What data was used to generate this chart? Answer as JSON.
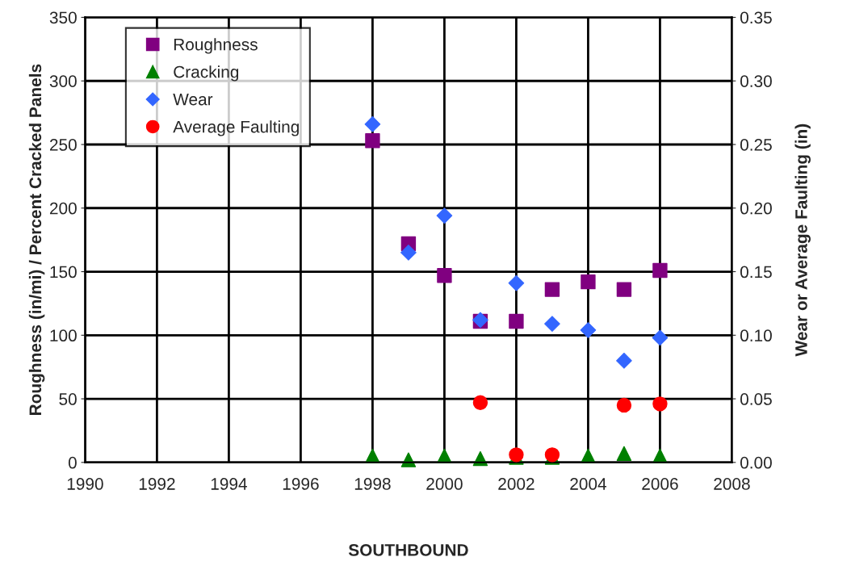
{
  "chart_data": {
    "type": "scatter",
    "xlabel": "SOUTHBOUND",
    "ylabel": "Roughness (in/mi) / Percent Cracked Panels",
    "y2label": "Wear or Average Faulting (in)",
    "x": [
      1998,
      1999,
      2000,
      2001,
      2002,
      2003,
      2004,
      2005,
      2006
    ],
    "series": [
      {
        "name": "Roughness",
        "color": "#800080",
        "marker": "square",
        "values": [
          253,
          172,
          147,
          111,
          111,
          136,
          142,
          136,
          151
        ]
      },
      {
        "name": "Cracking",
        "color": "#008000",
        "marker": "triangle",
        "values": [
          5,
          2,
          5,
          3,
          4,
          4,
          5,
          7,
          5
        ]
      },
      {
        "name": "Wear",
        "color": "#3366ff",
        "marker": "diamond",
        "axis": "y2",
        "values": [
          0.266,
          0.165,
          0.194,
          0.112,
          0.141,
          0.109,
          0.104,
          0.08,
          0.098
        ]
      },
      {
        "name": "Average Faulting",
        "color": "#ff0000",
        "marker": "circle",
        "axis": "y2",
        "values": [
          null,
          null,
          null,
          0.047,
          0.006,
          0.006,
          null,
          0.045,
          0.046
        ]
      }
    ],
    "xlim": [
      1990,
      2008
    ],
    "xticks": [
      1990,
      1992,
      1994,
      1996,
      1998,
      2000,
      2002,
      2004,
      2006,
      2008
    ],
    "ylim": [
      0,
      350
    ],
    "yticks": [
      0,
      50,
      100,
      150,
      200,
      250,
      300,
      350
    ],
    "y2lim": [
      0,
      0.35
    ],
    "y2ticks": [
      {
        "value": 0,
        "label": "0.00"
      },
      {
        "value": 0.05,
        "label": "0.05"
      },
      {
        "value": 0.1,
        "label": "0.10"
      },
      {
        "value": 0.15,
        "label": "0.15"
      },
      {
        "value": 0.2,
        "label": "0.20"
      },
      {
        "value": 0.25,
        "label": "0.25"
      },
      {
        "value": 0.3,
        "label": "0.30"
      },
      {
        "value": 0.35,
        "label": "0.35"
      }
    ],
    "grid": true,
    "legend": "top left"
  }
}
